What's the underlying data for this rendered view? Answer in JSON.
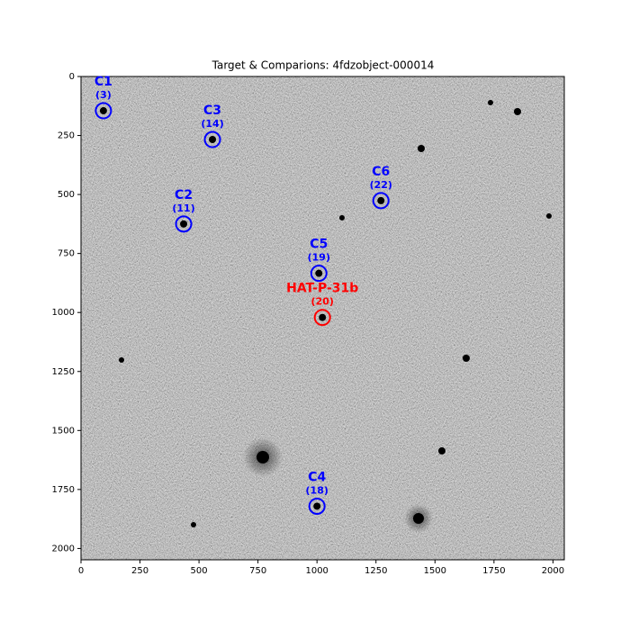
{
  "chart_data": {
    "type": "image",
    "title": "Target & Comparions: 4fdzobject-000014",
    "xlim": [
      0,
      2048
    ],
    "ylim": [
      0,
      2048
    ],
    "y_inverted": true,
    "xticks": [
      0,
      250,
      500,
      750,
      1000,
      1250,
      1500,
      1750,
      2000
    ],
    "yticks": [
      0,
      250,
      500,
      750,
      1000,
      1250,
      1500,
      1750,
      2000
    ],
    "targets": [
      {
        "name": "C1",
        "id_label": "(3)",
        "color": "#0000ff",
        "x": 95,
        "y": 145
      },
      {
        "name": "C3",
        "id_label": "(14)",
        "color": "#0000ff",
        "x": 557,
        "y": 267
      },
      {
        "name": "C6",
        "id_label": "(22)",
        "color": "#0000ff",
        "x": 1271,
        "y": 526
      },
      {
        "name": "C2",
        "id_label": "(11)",
        "color": "#0000ff",
        "x": 435,
        "y": 625
      },
      {
        "name": "C5",
        "id_label": "(19)",
        "color": "#0000ff",
        "x": 1008,
        "y": 834
      },
      {
        "name": "HAT-P-31b",
        "id_label": "(20)",
        "color": "#ff0000",
        "x": 1023,
        "y": 1021
      },
      {
        "name": "C4",
        "id_label": "(18)",
        "color": "#0000ff",
        "x": 1000,
        "y": 1821
      }
    ]
  }
}
